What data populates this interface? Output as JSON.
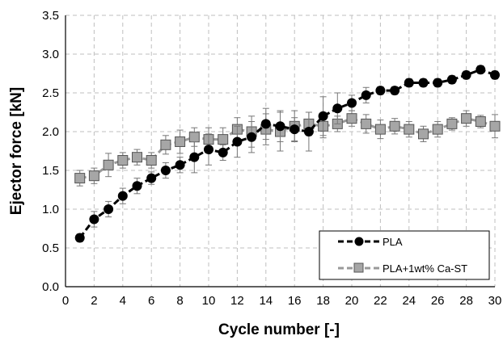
{
  "chart_data": {
    "type": "line",
    "xlabel": "Cycle number [-]",
    "ylabel": "Ejector force [kN]",
    "xlim": [
      0,
      30
    ],
    "ylim": [
      0.0,
      3.5
    ],
    "xticks": [
      "0",
      "2",
      "4",
      "6",
      "8",
      "10",
      "12",
      "14",
      "16",
      "18",
      "20",
      "22",
      "24",
      "26",
      "28",
      "30"
    ],
    "yticks": [
      "0.0",
      "0.5",
      "1.0",
      "1.5",
      "2.0",
      "2.5",
      "3.0",
      "3.5"
    ],
    "grid": "dashed",
    "legend_position": "bottom-right",
    "series": [
      {
        "name": "PLA",
        "color": "#000000",
        "marker": "circle",
        "x": [
          1,
          2,
          3,
          4,
          5,
          6,
          7,
          8,
          9,
          10,
          11,
          12,
          13,
          14,
          15,
          16,
          17,
          18,
          19,
          20,
          21,
          22,
          23,
          24,
          25,
          26,
          27,
          28,
          29,
          30
        ],
        "values": [
          0.63,
          0.87,
          1.0,
          1.17,
          1.3,
          1.4,
          1.5,
          1.57,
          1.67,
          1.77,
          1.73,
          1.87,
          1.93,
          2.1,
          2.07,
          2.03,
          2.0,
          2.2,
          2.3,
          2.37,
          2.47,
          2.53,
          2.53,
          2.63,
          2.63,
          2.63,
          2.67,
          2.73,
          2.8,
          2.73
        ],
        "errors": [
          0.05,
          0.1,
          0.1,
          0.1,
          0.1,
          0.08,
          0.1,
          0.1,
          0.2,
          0.2,
          0.1,
          0.2,
          0.2,
          0.2,
          0.2,
          0.15,
          0.25,
          0.25,
          0.2,
          0.1,
          0.1,
          0.05,
          0.05,
          0.05,
          0.05,
          0.05,
          0.05,
          0.05,
          0.05,
          0.05
        ]
      },
      {
        "name": "PLA+1wt% Ca-ST",
        "color": "#999999",
        "marker": "square",
        "x": [
          1,
          2,
          3,
          4,
          5,
          6,
          7,
          8,
          9,
          10,
          11,
          12,
          13,
          14,
          15,
          16,
          17,
          18,
          19,
          20,
          21,
          22,
          23,
          24,
          25,
          26,
          27,
          28,
          29,
          30
        ],
        "values": [
          1.4,
          1.43,
          1.57,
          1.63,
          1.67,
          1.63,
          1.83,
          1.87,
          1.93,
          1.9,
          1.9,
          2.03,
          2.0,
          2.03,
          2.0,
          2.07,
          2.1,
          2.07,
          2.1,
          2.17,
          2.1,
          2.03,
          2.07,
          2.03,
          1.97,
          2.03,
          2.1,
          2.17,
          2.13,
          2.07
        ],
        "errors": [
          0.1,
          0.1,
          0.15,
          0.1,
          0.1,
          0.1,
          0.12,
          0.15,
          0.12,
          0.15,
          0.15,
          0.15,
          0.2,
          0.2,
          0.25,
          0.2,
          0.15,
          0.15,
          0.1,
          0.1,
          0.12,
          0.12,
          0.1,
          0.1,
          0.1,
          0.1,
          0.08,
          0.1,
          0.08,
          0.15
        ]
      }
    ]
  }
}
